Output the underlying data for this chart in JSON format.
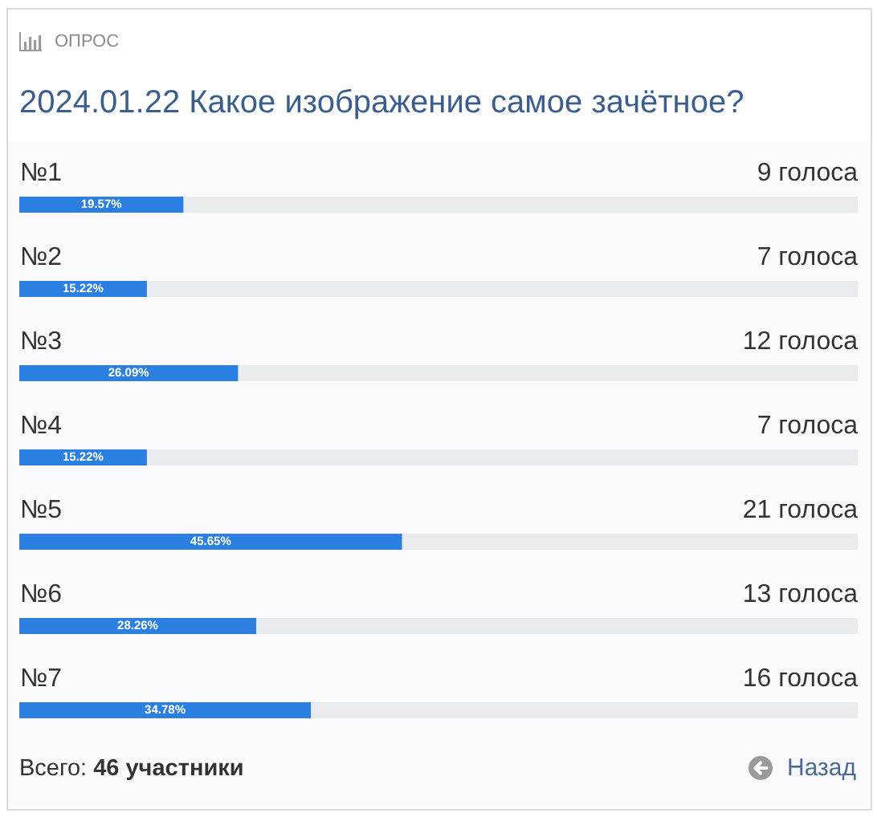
{
  "chart_data": {
    "type": "bar",
    "orientation": "horizontal",
    "title": "2024.01.22 Какое изображение самое зачётное?",
    "subtitle": "ОПРОС",
    "categories": [
      "№1",
      "№2",
      "№3",
      "№4",
      "№5",
      "№6",
      "№7"
    ],
    "values": [
      19.57,
      15.22,
      26.09,
      15.22,
      45.65,
      28.26,
      34.78
    ],
    "value_labels": [
      "19.57%",
      "15.22%",
      "26.09%",
      "15.22%",
      "45.65%",
      "28.26%",
      "34.78%"
    ],
    "color": "#2a7fe0",
    "xlim": [
      0,
      100
    ],
    "tick_labels": "y",
    "annotations": [
      "9 голоса",
      "7 голоса",
      "12 голоса",
      "7 голоса",
      "21 голоса",
      "13 голоса",
      "16 голоса",
      "Всего:",
      "46 участники",
      "Назад"
    ]
  }
}
